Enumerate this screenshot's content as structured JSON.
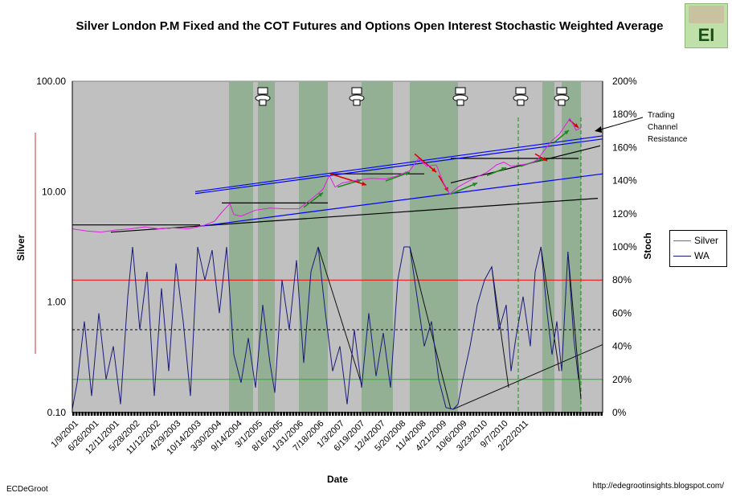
{
  "chart_data": {
    "type": "line",
    "title": "Silver London P.M Fixed and the COT Futures and Options Open Interest Stochastic Weighted Average",
    "xlabel": "Date",
    "ylabel_left": "Silver",
    "ylabel_right": "Stoch",
    "y_left_scale": "log",
    "y_left_range": [
      0.1,
      100
    ],
    "y_left_ticks": [
      "100.00",
      "10.00",
      "1.00",
      "0.10"
    ],
    "y_right_range": [
      0,
      200
    ],
    "y_right_ticks": [
      "200%",
      "180%",
      "160%",
      "140%",
      "120%",
      "100%",
      "80%",
      "60%",
      "40%",
      "20%",
      "0%"
    ],
    "x_range": [
      "2001-01-01",
      "2011-12-31"
    ],
    "x_tick_labels": [
      "1/9/2001",
      "6/26/2001",
      "12/11/2001",
      "5/28/2002",
      "11/12/2002",
      "4/29/2003",
      "10/14/2003",
      "3/30/2004",
      "9/14/2004",
      "3/1/2005",
      "8/16/2005",
      "1/31/2006",
      "7/18/2006",
      "1/3/2007",
      "6/19/2007",
      "12/4/2007",
      "5/20/2008",
      "11/4/2008",
      "4/21/2009",
      "10/6/2009",
      "3/23/2010",
      "9/7/2010",
      "2/22/2011"
    ],
    "series": [
      {
        "name": "Silver",
        "axis": "left",
        "color": "#e020e0",
        "points": [
          [
            2001.0,
            4.6
          ],
          [
            2001.3,
            4.4
          ],
          [
            2001.6,
            4.3
          ],
          [
            2001.9,
            4.5
          ],
          [
            2002.2,
            4.6
          ],
          [
            2002.5,
            4.8
          ],
          [
            2002.8,
            4.6
          ],
          [
            2003.1,
            4.7
          ],
          [
            2003.4,
            4.6
          ],
          [
            2003.7,
            4.9
          ],
          [
            2003.95,
            5.4
          ],
          [
            2004.1,
            6.5
          ],
          [
            2004.27,
            7.8
          ],
          [
            2004.35,
            6.2
          ],
          [
            2004.5,
            6.0
          ],
          [
            2004.8,
            6.8
          ],
          [
            2005.1,
            7.1
          ],
          [
            2005.4,
            7.0
          ],
          [
            2005.7,
            7.0
          ],
          [
            2005.95,
            8.5
          ],
          [
            2006.2,
            10.5
          ],
          [
            2006.33,
            14.0
          ],
          [
            2006.45,
            11.0
          ],
          [
            2006.6,
            12.0
          ],
          [
            2006.9,
            12.7
          ],
          [
            2007.2,
            13.2
          ],
          [
            2007.5,
            13.0
          ],
          [
            2007.75,
            14.0
          ],
          [
            2008.0,
            15.5
          ],
          [
            2008.18,
            20.0
          ],
          [
            2008.35,
            17.0
          ],
          [
            2008.55,
            17.5
          ],
          [
            2008.7,
            12.0
          ],
          [
            2008.83,
            9.5
          ],
          [
            2009.0,
            11.0
          ],
          [
            2009.3,
            13.0
          ],
          [
            2009.6,
            15.0
          ],
          [
            2009.8,
            17.5
          ],
          [
            2009.95,
            18.5
          ],
          [
            2010.1,
            17.0
          ],
          [
            2010.3,
            17.5
          ],
          [
            2010.5,
            18.0
          ],
          [
            2010.65,
            19.5
          ],
          [
            2010.8,
            24.0
          ],
          [
            2010.95,
            29.0
          ],
          [
            2011.1,
            33.0
          ],
          [
            2011.32,
            46.0
          ],
          [
            2011.45,
            36.0
          ],
          [
            2011.55,
            38.0
          ]
        ]
      },
      {
        "name": "WA",
        "axis": "right",
        "color": "#1a1a7a",
        "points": [
          [
            2001.0,
            2
          ],
          [
            2001.1,
            18
          ],
          [
            2001.25,
            55
          ],
          [
            2001.4,
            10
          ],
          [
            2001.55,
            60
          ],
          [
            2001.7,
            20
          ],
          [
            2001.85,
            40
          ],
          [
            2002.0,
            5
          ],
          [
            2002.15,
            70
          ],
          [
            2002.25,
            100
          ],
          [
            2002.4,
            50
          ],
          [
            2002.55,
            85
          ],
          [
            2002.7,
            10
          ],
          [
            2002.85,
            75
          ],
          [
            2003.0,
            25
          ],
          [
            2003.15,
            90
          ],
          [
            2003.3,
            55
          ],
          [
            2003.45,
            10
          ],
          [
            2003.6,
            100
          ],
          [
            2003.75,
            80
          ],
          [
            2003.9,
            98
          ],
          [
            2004.05,
            60
          ],
          [
            2004.2,
            100
          ],
          [
            2004.35,
            35
          ],
          [
            2004.5,
            18
          ],
          [
            2004.65,
            45
          ],
          [
            2004.8,
            15
          ],
          [
            2004.95,
            65
          ],
          [
            2005.1,
            30
          ],
          [
            2005.2,
            12
          ],
          [
            2005.35,
            80
          ],
          [
            2005.5,
            50
          ],
          [
            2005.65,
            92
          ],
          [
            2005.8,
            30
          ],
          [
            2005.95,
            85
          ],
          [
            2006.1,
            100
          ],
          [
            2006.25,
            60
          ],
          [
            2006.4,
            25
          ],
          [
            2006.55,
            40
          ],
          [
            2006.7,
            5
          ],
          [
            2006.85,
            50
          ],
          [
            2007.0,
            15
          ],
          [
            2007.15,
            60
          ],
          [
            2007.3,
            22
          ],
          [
            2007.45,
            48
          ],
          [
            2007.6,
            15
          ],
          [
            2007.75,
            80
          ],
          [
            2007.88,
            100
          ],
          [
            2008.0,
            100
          ],
          [
            2008.15,
            70
          ],
          [
            2008.3,
            40
          ],
          [
            2008.45,
            55
          ],
          [
            2008.6,
            20
          ],
          [
            2008.75,
            3
          ],
          [
            2008.9,
            2
          ],
          [
            2009.0,
            5
          ],
          [
            2009.1,
            20
          ],
          [
            2009.25,
            40
          ],
          [
            2009.4,
            65
          ],
          [
            2009.55,
            80
          ],
          [
            2009.7,
            88
          ],
          [
            2009.85,
            50
          ],
          [
            2010.0,
            65
          ],
          [
            2010.1,
            25
          ],
          [
            2010.2,
            45
          ],
          [
            2010.35,
            70
          ],
          [
            2010.5,
            40
          ],
          [
            2010.6,
            85
          ],
          [
            2010.72,
            100
          ],
          [
            2010.85,
            60
          ],
          [
            2010.95,
            35
          ],
          [
            2011.05,
            55
          ],
          [
            2011.15,
            25
          ],
          [
            2011.28,
            97
          ],
          [
            2011.4,
            45
          ],
          [
            2011.5,
            20
          ]
        ]
      }
    ],
    "reference_lines_stoch": [
      {
        "value": 80,
        "color": "#ff0000"
      },
      {
        "value": 50,
        "style": "dashed",
        "color": "#000000"
      },
      {
        "value": 20,
        "color": "#00cc00"
      }
    ],
    "shaded_periods": [
      [
        2004.25,
        2004.75
      ],
      [
        2004.85,
        2005.2
      ],
      [
        2005.7,
        2006.3
      ],
      [
        2007.0,
        2007.65
      ],
      [
        2008.0,
        2009.0
      ],
      [
        2010.75,
        2011.0
      ],
      [
        2011.15,
        2011.55
      ]
    ],
    "trend_lines": [
      {
        "color": "#000000",
        "from": [
          2001.0,
          5.0
        ],
        "to": [
          2003.65,
          5.0
        ]
      },
      {
        "color": "#000000",
        "from": [
          2001.8,
          4.3
        ],
        "to": [
          2011.9,
          8.7
        ]
      },
      {
        "color": "#000000",
        "from": [
          2004.1,
          7.9
        ],
        "to": [
          2006.3,
          7.9
        ]
      },
      {
        "color": "#000000",
        "from": [
          2006.35,
          14.5
        ],
        "to": [
          2008.3,
          14.5
        ]
      },
      {
        "color": "#000000",
        "from": [
          2008.85,
          20.0
        ],
        "to": [
          2011.5,
          20.0
        ]
      },
      {
        "color": "#0000ff",
        "from": [
          2003.55,
          10.0
        ],
        "to": [
          2012.0,
          32.0
        ]
      },
      {
        "color": "#0000ff",
        "from": [
          2003.55,
          9.6
        ],
        "to": [
          2012.0,
          30.0
        ]
      },
      {
        "color": "#0000ff",
        "from": [
          2003.55,
          4.8
        ],
        "to": [
          2012.0,
          14.5
        ]
      },
      {
        "color": "#000000",
        "from": [
          2008.85,
          12.0
        ],
        "to": [
          2011.95,
          26.0
        ]
      }
    ],
    "annotations": [
      {
        "text": "Trading Channel Resistance",
        "target": [
          2012.0,
          31.0
        ]
      }
    ],
    "toilet_markers_at": [
      2004.95,
      2006.9,
      2009.05,
      2010.3,
      2011.15
    ],
    "legend": {
      "position": "right",
      "entries": [
        "Silver",
        "WA"
      ]
    }
  },
  "labels": {
    "title": "Silver London P.M Fixed and the COT Futures and Options Open Interest Stochastic Weighted Average",
    "xlabel": "Date",
    "ylabel_left": "Silver",
    "ylabel_right": "Stoch",
    "annotation": "Trading Channel Resistance",
    "author": "ECDeGroot",
    "url": "http://edegrootinsights.blogspot.com/",
    "logo": "EI",
    "legend_silver": "Silver",
    "legend_wa": "WA"
  },
  "colors": {
    "plot_bg": "#c0c0c0",
    "shade": "#8fae8f",
    "silver": "#e020e0",
    "wa": "#1a1a7a"
  }
}
